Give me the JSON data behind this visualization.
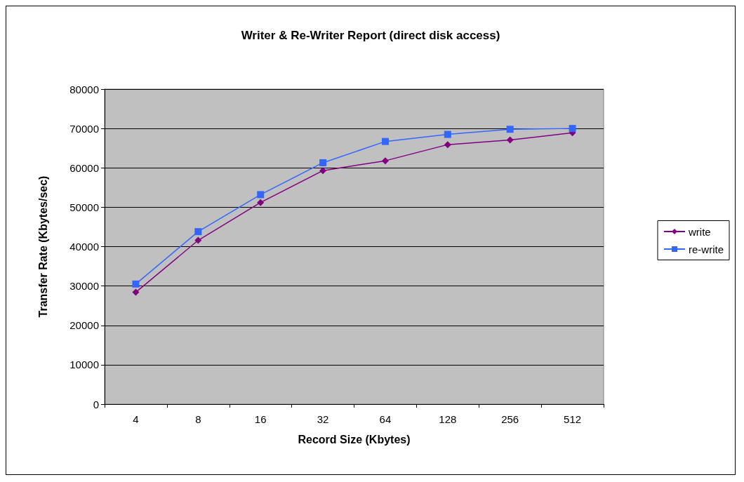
{
  "chart_data": {
    "type": "line",
    "title": "Writer & Re-Writer Report (direct disk access)",
    "xlabel": "Record Size (Kbytes)",
    "ylabel": "Transfer Rate (Kbytes/sec)",
    "categories": [
      "4",
      "8",
      "16",
      "32",
      "64",
      "128",
      "256",
      "512"
    ],
    "series": [
      {
        "name": "write",
        "color": "#800080",
        "marker": "diamond",
        "values": [
          28400,
          41600,
          51200,
          59300,
          61800,
          65900,
          67100,
          68900
        ]
      },
      {
        "name": "re-write",
        "color": "#3366ff",
        "marker": "square",
        "values": [
          30500,
          43800,
          53200,
          61300,
          66700,
          68500,
          69800,
          70000
        ]
      }
    ],
    "ylim": [
      0,
      80000
    ],
    "yticks": [
      0,
      10000,
      20000,
      30000,
      40000,
      50000,
      60000,
      70000,
      80000
    ],
    "grid": "y",
    "legend": "right"
  }
}
